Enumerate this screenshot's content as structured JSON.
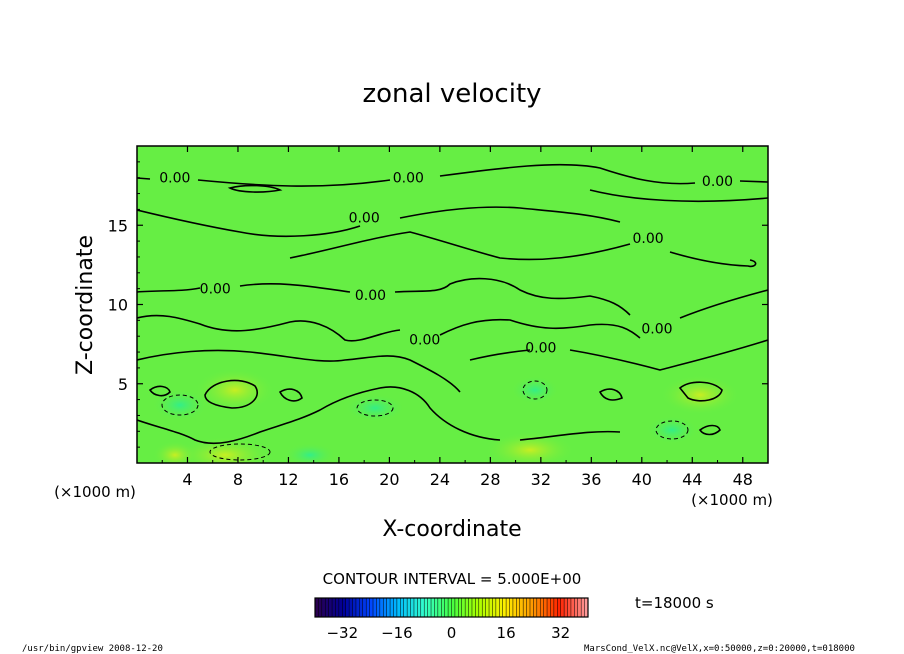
{
  "chart_data": {
    "type": "heatmap",
    "title": "zonal velocity",
    "xlabel": "X-coordinate",
    "ylabel": "Z-coordinate",
    "x_unit_left": "(×1000 m)",
    "x_unit_right": "(×1000 m)",
    "xlim": [
      0,
      50
    ],
    "ylim": [
      0,
      20
    ],
    "x_ticks": [
      "4",
      "8",
      "12",
      "16",
      "20",
      "24",
      "28",
      "32",
      "36",
      "40",
      "44",
      "48"
    ],
    "y_ticks": [
      "5",
      "10",
      "15"
    ],
    "x_tick_values": [
      4,
      8,
      12,
      16,
      20,
      24,
      28,
      32,
      36,
      40,
      44,
      48
    ],
    "y_tick_values": [
      5,
      10,
      15
    ],
    "contour_interval_label": "CONTOUR INTERVAL = 5.000E+00",
    "contour_labels": [
      {
        "text": "0.00",
        "x": 3.0,
        "z": 18.0
      },
      {
        "text": "0.00",
        "x": 21.5,
        "z": 18.0
      },
      {
        "text": "0.00",
        "x": 46.0,
        "z": 17.8
      },
      {
        "text": "0.00",
        "x": 18.0,
        "z": 15.5
      },
      {
        "text": "0.00",
        "x": 40.5,
        "z": 14.2
      },
      {
        "text": "0.00",
        "x": 6.2,
        "z": 11.0
      },
      {
        "text": "0.00",
        "x": 18.5,
        "z": 10.6
      },
      {
        "text": "0.00",
        "x": 41.2,
        "z": 8.5
      },
      {
        "text": "0.00",
        "x": 22.8,
        "z": 7.8
      },
      {
        "text": "0.00",
        "x": 32.0,
        "z": 7.3
      }
    ],
    "colorbar": {
      "ticks": [
        "−32",
        "−16",
        "0",
        "16",
        "32"
      ],
      "tick_values": [
        -32,
        -16,
        0,
        16,
        32
      ],
      "range": [
        -40,
        40
      ],
      "colors": [
        "#2a0050",
        "#000099",
        "#0044ff",
        "#00bbff",
        "#33ffcc",
        "#44ff44",
        "#aaff00",
        "#ffee00",
        "#ff9900",
        "#ff2200",
        "#ff9999"
      ]
    },
    "time_label": "t=18000 s",
    "field_color": "#66ee44"
  },
  "footer": {
    "left": "/usr/bin/gpview   2008-12-20",
    "right": "MarsCond_VelX.nc@VelX,x=0:50000,z=0:20000,t=018000"
  }
}
